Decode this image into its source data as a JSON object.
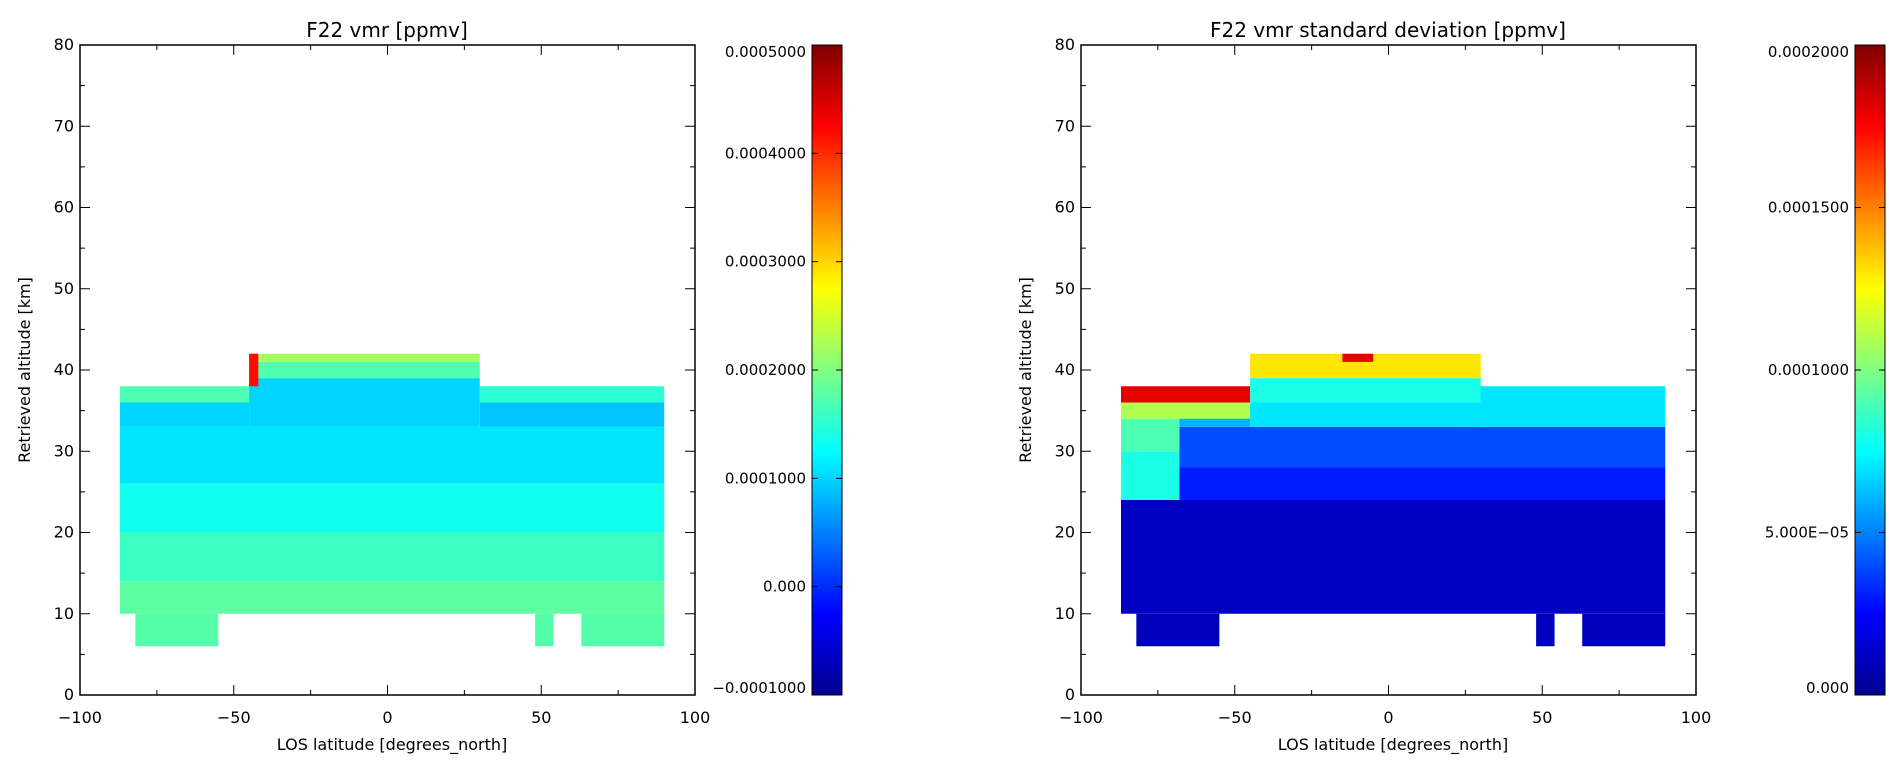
{
  "colormap": [
    "#00008f",
    "#0000ff",
    "#0080ff",
    "#00ffff",
    "#80ff80",
    "#ffff00",
    "#ff8000",
    "#ff0000",
    "#800000"
  ],
  "chart_data": [
    {
      "type": "heatmap",
      "title": "F22 vmr [ppmv]",
      "xlabel": "LOS latitude [degrees_north]",
      "ylabel": "Retrieved altitude [km]",
      "xlim": [
        -100,
        100
      ],
      "ylim": [
        0,
        80
      ],
      "x_ticks": [
        "−100",
        "−50",
        "0",
        "50",
        "100"
      ],
      "y_ticks": [
        "0",
        "10",
        "20",
        "30",
        "40",
        "50",
        "60",
        "70",
        "80"
      ],
      "colorbar": {
        "range": [
          -0.0001,
          0.0005
        ],
        "tick_values": [
          -0.0001,
          0.0,
          0.0001,
          0.0002,
          0.0003,
          0.0004,
          0.0005
        ],
        "tick_labels": [
          "−0.0001000",
          "0.000",
          "0.0001000",
          "0.0002000",
          "0.0003000",
          "0.0004000",
          "0.0005000"
        ]
      },
      "regions": [
        {
          "lat": [
            -82,
            -55
          ],
          "alt": [
            6,
            10
          ],
          "value": 0.000175
        },
        {
          "lat": [
            48,
            54
          ],
          "alt": [
            6,
            10
          ],
          "value": 0.000175
        },
        {
          "lat": [
            63,
            90
          ],
          "alt": [
            6,
            10
          ],
          "value": 0.000175
        },
        {
          "lat": [
            -87,
            90
          ],
          "alt": [
            10,
            14
          ],
          "value": 0.00018
        },
        {
          "lat": [
            -87,
            90
          ],
          "alt": [
            14,
            20
          ],
          "value": 0.00016
        },
        {
          "lat": [
            -87,
            90
          ],
          "alt": [
            20,
            26
          ],
          "value": 0.000135
        },
        {
          "lat": [
            -87,
            90
          ],
          "alt": [
            26,
            33
          ],
          "value": 0.00011
        },
        {
          "lat": [
            -87,
            -45
          ],
          "alt": [
            33,
            36
          ],
          "value": 0.0001
        },
        {
          "lat": [
            30,
            90
          ],
          "alt": [
            33,
            36
          ],
          "value": 9e-05
        },
        {
          "lat": [
            -87,
            -45
          ],
          "alt": [
            36,
            38
          ],
          "value": 0.00017
        },
        {
          "lat": [
            30,
            90
          ],
          "alt": [
            36,
            38
          ],
          "value": 0.00015
        },
        {
          "lat": [
            -45,
            30
          ],
          "alt": [
            33,
            39
          ],
          "value": 0.0001
        },
        {
          "lat": [
            -45,
            30
          ],
          "alt": [
            39,
            41
          ],
          "value": 0.00017
        },
        {
          "lat": [
            -45,
            30
          ],
          "alt": [
            41,
            42
          ],
          "value": 0.00022
        },
        {
          "lat": [
            -45,
            -42
          ],
          "alt": [
            38,
            42
          ],
          "value": 0.00042
        }
      ]
    },
    {
      "type": "heatmap",
      "title": "F22 vmr standard deviation [ppmv]",
      "xlabel": "LOS latitude [degrees_north]",
      "ylabel": "Retrieved altitude [km]",
      "xlim": [
        -100,
        100
      ],
      "ylim": [
        0,
        80
      ],
      "x_ticks": [
        "−100",
        "−50",
        "0",
        "50",
        "100"
      ],
      "y_ticks": [
        "0",
        "10",
        "20",
        "30",
        "40",
        "50",
        "60",
        "70",
        "80"
      ],
      "colorbar": {
        "range": [
          0,
          0.0002
        ],
        "tick_values": [
          0.0,
          5e-05,
          0.0001,
          0.00015,
          0.0002
        ],
        "tick_labels": [
          "0.000",
          "5.000E−05",
          "0.0001000",
          "0.0001500",
          "0.0002000"
        ]
      },
      "regions": [
        {
          "lat": [
            -82,
            -55
          ],
          "alt": [
            6,
            10
          ],
          "value": 1e-05
        },
        {
          "lat": [
            48,
            54
          ],
          "alt": [
            6,
            10
          ],
          "value": 1e-05
        },
        {
          "lat": [
            63,
            90
          ],
          "alt": [
            6,
            10
          ],
          "value": 1e-05
        },
        {
          "lat": [
            -87,
            90
          ],
          "alt": [
            10,
            24
          ],
          "value": 1.2e-05
        },
        {
          "lat": [
            -87,
            90
          ],
          "alt": [
            24,
            28
          ],
          "value": 3e-05
        },
        {
          "lat": [
            -87,
            -68
          ],
          "alt": [
            24,
            30
          ],
          "value": 8e-05
        },
        {
          "lat": [
            -68,
            90
          ],
          "alt": [
            28,
            33
          ],
          "value": 4e-05
        },
        {
          "lat": [
            -87,
            -68
          ],
          "alt": [
            30,
            34
          ],
          "value": 9e-05
        },
        {
          "lat": [
            -68,
            -45
          ],
          "alt": [
            33,
            36
          ],
          "value": 6e-05
        },
        {
          "lat": [
            25,
            90
          ],
          "alt": [
            33,
            38
          ],
          "value": 7e-05
        },
        {
          "lat": [
            -87,
            -45
          ],
          "alt": [
            34,
            36
          ],
          "value": 0.00011
        },
        {
          "lat": [
            -87,
            -45
          ],
          "alt": [
            36,
            38
          ],
          "value": 0.00018
        },
        {
          "lat": [
            -45,
            30
          ],
          "alt": [
            33,
            36
          ],
          "value": 7e-05
        },
        {
          "lat": [
            -45,
            30
          ],
          "alt": [
            36,
            39
          ],
          "value": 8e-05
        },
        {
          "lat": [
            -45,
            30
          ],
          "alt": [
            39,
            42
          ],
          "value": 0.00013
        },
        {
          "lat": [
            -15,
            -5
          ],
          "alt": [
            41,
            42
          ],
          "value": 0.00018
        }
      ]
    }
  ]
}
